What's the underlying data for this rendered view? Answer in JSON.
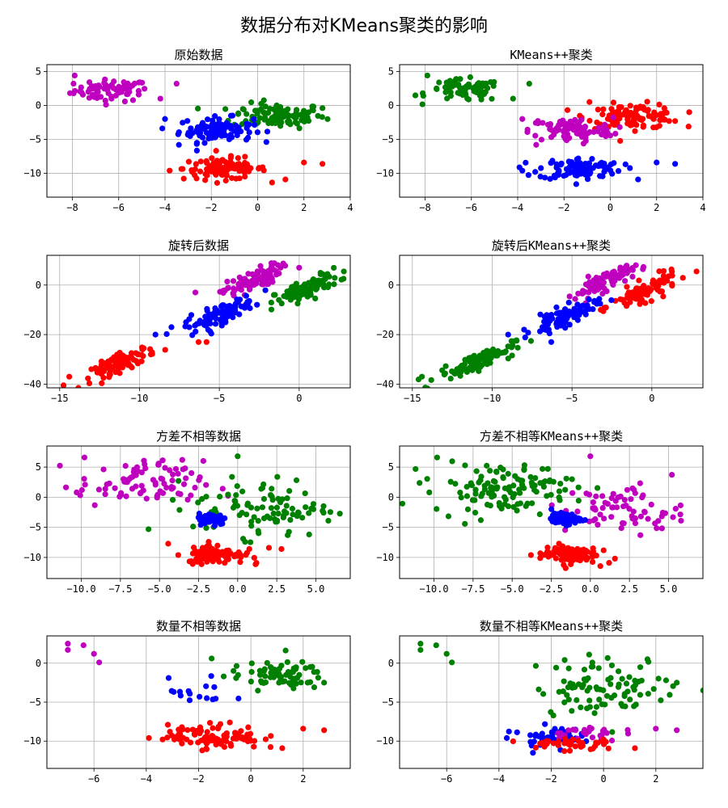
{
  "figure": {
    "suptitle": "数据分布对KMeans聚类的影响"
  },
  "colors": {
    "r": "#ff0000",
    "g": "#008000",
    "b": "#0000ff",
    "m": "#bf00bf",
    "axis": "#000000",
    "grid": "#b0b0b0"
  },
  "chart_data": [
    {
      "type": "scatter",
      "title": "原始数据",
      "grid": true,
      "xlim": [
        -9.1,
        4
      ],
      "ylim": [
        -13.5,
        6
      ],
      "xticks": [
        -8,
        -6,
        -4,
        -2,
        0,
        2,
        4
      ],
      "xtick_labels": [
        "−8",
        "−6",
        "−4",
        "−2",
        "0",
        "2",
        "4"
      ],
      "yticks": [
        5,
        0,
        -5,
        -10
      ],
      "ytick_labels": [
        "5",
        "0",
        "−5",
        "−10"
      ],
      "clusters": [
        {
          "color": "m",
          "cx": -6.3,
          "cy": 2.2,
          "sx": 0.8,
          "sy": 0.8,
          "n": 70,
          "extra": [
            [
              -8.1,
              1.8
            ],
            [
              -7.9,
              4.4
            ],
            [
              -3.5,
              3.2
            ],
            [
              -4.2,
              1.0
            ]
          ]
        },
        {
          "color": "g",
          "cx": 0.9,
          "cy": -1.5,
          "sx": 1.0,
          "sy": 0.9,
          "n": 110,
          "extra": [
            [
              2.8,
              -0.4
            ],
            [
              -0.6,
              -0.6
            ]
          ]
        },
        {
          "color": "b",
          "cx": -1.8,
          "cy": -3.6,
          "sx": 0.8,
          "sy": 0.9,
          "n": 95,
          "extra": [
            [
              -4.0,
              -2.0
            ],
            [
              -3.4,
              -5.8
            ]
          ]
        },
        {
          "color": "r",
          "cx": -1.4,
          "cy": -9.3,
          "sx": 0.9,
          "sy": 0.8,
          "n": 100,
          "extra": [
            [
              -3.8,
              -9.6
            ],
            [
              2.0,
              -8.4
            ],
            [
              2.8,
              -8.6
            ],
            [
              1.2,
              -10.9
            ]
          ]
        }
      ]
    },
    {
      "type": "scatter",
      "title": "KMeans++聚类",
      "grid": true,
      "xlim": [
        -9.1,
        4
      ],
      "ylim": [
        -13.5,
        6
      ],
      "xticks": [
        -8,
        -6,
        -4,
        -2,
        0,
        2,
        4
      ],
      "xtick_labels": [
        "−8",
        "−6",
        "−4",
        "−2",
        "0",
        "2",
        "4"
      ],
      "yticks": [
        5,
        0,
        -5,
        -10
      ],
      "ytick_labels": [
        "5",
        "0",
        "−5",
        "−10"
      ],
      "clusters": [
        {
          "color": "g",
          "cx": -6.3,
          "cy": 2.2,
          "sx": 0.8,
          "sy": 0.8,
          "n": 70,
          "extra": [
            [
              -8.1,
              1.8
            ],
            [
              -7.9,
              4.4
            ],
            [
              -3.5,
              3.2
            ],
            [
              -4.2,
              1.0
            ]
          ]
        },
        {
          "color": "r",
          "cx": 1.0,
          "cy": -1.6,
          "sx": 1.0,
          "sy": 0.9,
          "n": 110,
          "extra": [
            [
              2.8,
              -2.3
            ],
            [
              -0.9,
              0.5
            ]
          ]
        },
        {
          "color": "m",
          "cx": -1.7,
          "cy": -3.6,
          "sx": 0.9,
          "sy": 0.9,
          "n": 95,
          "extra": [
            [
              -3.8,
              -2.0
            ],
            [
              -3.2,
              -5.8
            ]
          ]
        },
        {
          "color": "b",
          "cx": -1.3,
          "cy": -9.3,
          "sx": 0.9,
          "sy": 0.8,
          "n": 100,
          "extra": [
            [
              -3.8,
              -9.6
            ],
            [
              2.0,
              -8.4
            ],
            [
              2.8,
              -8.6
            ],
            [
              1.2,
              -10.9
            ]
          ]
        }
      ]
    },
    {
      "type": "scatter",
      "title": "旋转后数据",
      "grid": true,
      "xlim": [
        -15.8,
        3.2
      ],
      "ylim": [
        -41.5,
        12
      ],
      "xticks": [
        -15,
        -10,
        -5,
        0
      ],
      "xtick_labels": [
        "−15",
        "−10",
        "−5",
        "0"
      ],
      "yticks": [
        0,
        -20,
        -40
      ],
      "ytick_labels": [
        "0",
        "−20",
        "−40"
      ],
      "clusters": [
        {
          "color": "m",
          "cx": -3.0,
          "cy": 1.5,
          "sx": 0.9,
          "sy": 2.0,
          "n": 90,
          "slope": 2.6,
          "extra": [
            [
              0.0,
              7.0
            ],
            [
              -6.5,
              -3.0
            ]
          ]
        },
        {
          "color": "g",
          "cx": 0.5,
          "cy": -1.5,
          "sx": 1.0,
          "sy": 2.0,
          "n": 100,
          "slope": 2.6,
          "extra": [
            [
              2.8,
              5.5
            ]
          ]
        },
        {
          "color": "b",
          "cx": -5.0,
          "cy": -12.0,
          "sx": 1.1,
          "sy": 2.0,
          "n": 95,
          "slope": 2.6,
          "extra": [
            [
              -8.0,
              -17.0
            ],
            [
              -9.0,
              -20.0
            ]
          ]
        },
        {
          "color": "r",
          "cx": -11.0,
          "cy": -31.0,
          "sx": 1.0,
          "sy": 1.8,
          "n": 95,
          "slope": 2.6,
          "extra": [
            [
              -14.4,
              -37.0
            ],
            [
              -6.3,
              -23.0
            ],
            [
              -5.8,
              -23.0
            ]
          ]
        }
      ]
    },
    {
      "type": "scatter",
      "title": "旋转后KMeans++聚类",
      "grid": true,
      "xlim": [
        -15.8,
        3.2
      ],
      "ylim": [
        -41.5,
        12
      ],
      "xticks": [
        -15,
        -10,
        -5,
        0
      ],
      "xtick_labels": [
        "−15",
        "−10",
        "−5",
        "0"
      ],
      "yticks": [
        0,
        -20,
        -40
      ],
      "ytick_labels": [
        "0",
        "−20",
        "−40"
      ],
      "clusters": [
        {
          "color": "m",
          "cx": -3.0,
          "cy": 1.5,
          "sx": 0.9,
          "sy": 2.0,
          "n": 90,
          "slope": 2.6,
          "extra": [
            [
              -1.0,
              8.0
            ]
          ]
        },
        {
          "color": "r",
          "cx": -0.4,
          "cy": -2.5,
          "sx": 1.0,
          "sy": 2.0,
          "n": 100,
          "slope": 2.6,
          "extra": [
            [
              2.8,
              5.5
            ],
            [
              -3.2,
              -10.0
            ]
          ]
        },
        {
          "color": "b",
          "cx": -5.5,
          "cy": -13.0,
          "sx": 1.0,
          "sy": 2.0,
          "n": 90,
          "slope": 2.6,
          "extra": [
            [
              -8.0,
              -18.0
            ],
            [
              -9.0,
              -20.0
            ],
            [
              -6.3,
              -23.0
            ]
          ]
        },
        {
          "color": "g",
          "cx": -11.0,
          "cy": -31.0,
          "sx": 1.2,
          "sy": 1.8,
          "n": 100,
          "slope": 2.6,
          "extra": [
            [
              -14.4,
              -37.0
            ]
          ]
        }
      ]
    },
    {
      "type": "scatter",
      "title": "方差不相等数据",
      "grid": true,
      "xlim": [
        -12.2,
        7.2
      ],
      "ylim": [
        -13.5,
        8.5
      ],
      "xticks": [
        -10,
        -7.5,
        -5,
        -2.5,
        0,
        2.5,
        5
      ],
      "xtick_labels": [
        "−10.0",
        "−7.5",
        "−5.0",
        "−2.5",
        "0.0",
        "2.5",
        "5.0"
      ],
      "yticks": [
        5,
        0,
        -5,
        -10
      ],
      "ytick_labels": [
        "5",
        "0",
        "−5",
        "−10"
      ],
      "clusters": [
        {
          "color": "m",
          "cx": -6.2,
          "cy": 2.2,
          "sx": 2.0,
          "sy": 1.9,
          "n": 85,
          "extra": [
            [
              -9.8,
              6.6
            ],
            [
              -10.3,
              0.8
            ],
            [
              -3.0,
              0.3
            ]
          ]
        },
        {
          "color": "g",
          "cx": 1.6,
          "cy": -1.7,
          "sx": 2.2,
          "sy": 2.4,
          "n": 95,
          "extra": [
            [
              0.0,
              6.8
            ],
            [
              5.8,
              -3.9
            ],
            [
              3.2,
              -6.3
            ]
          ]
        },
        {
          "color": "b",
          "cx": -1.6,
          "cy": -3.6,
          "sx": 0.45,
          "sy": 0.45,
          "n": 85,
          "extra": []
        },
        {
          "color": "r",
          "cx": -1.4,
          "cy": -9.4,
          "sx": 0.9,
          "sy": 0.8,
          "n": 100,
          "extra": [
            [
              -3.8,
              -9.6
            ],
            [
              2.0,
              -8.4
            ],
            [
              2.8,
              -8.6
            ],
            [
              1.2,
              -10.9
            ]
          ]
        }
      ]
    },
    {
      "type": "scatter",
      "title": "方差不相等KMeans++聚类",
      "grid": true,
      "xlim": [
        -12.2,
        7.2
      ],
      "ylim": [
        -13.5,
        8.5
      ],
      "xticks": [
        -10,
        -7.5,
        -5,
        -2.5,
        0,
        2.5,
        5
      ],
      "xtick_labels": [
        "−10.0",
        "−7.5",
        "−5.0",
        "−2.5",
        "0.0",
        "2.5",
        "5.0"
      ],
      "yticks": [
        5,
        0,
        -5,
        -10
      ],
      "ytick_labels": [
        "5",
        "0",
        "−5",
        "−10"
      ],
      "clusters": [
        {
          "color": "g",
          "cx": -5.6,
          "cy": 1.6,
          "sx": 2.3,
          "sy": 2.0,
          "n": 120,
          "extra": [
            [
              -9.8,
              6.6
            ],
            [
              -10.3,
              0.8
            ]
          ]
        },
        {
          "color": "m",
          "cx": 2.2,
          "cy": -2.0,
          "sx": 1.9,
          "sy": 2.1,
          "n": 70,
          "extra": [
            [
              5.8,
              -3.9
            ],
            [
              3.2,
              -6.3
            ],
            [
              0.0,
              6.8
            ]
          ]
        },
        {
          "color": "b",
          "cx": -1.6,
          "cy": -3.6,
          "sx": 0.45,
          "sy": 0.45,
          "n": 85,
          "extra": []
        },
        {
          "color": "r",
          "cx": -1.4,
          "cy": -9.4,
          "sx": 0.9,
          "sy": 0.8,
          "n": 100,
          "extra": [
            [
              -3.8,
              -9.6
            ],
            [
              1.2,
              -10.9
            ]
          ]
        }
      ]
    },
    {
      "type": "scatter",
      "title": "数量不相等数据",
      "grid": true,
      "xlim": [
        -7.8,
        3.8
      ],
      "ylim": [
        -13.5,
        3.5
      ],
      "xticks": [
        -6,
        -4,
        -2,
        0,
        2
      ],
      "xtick_labels": [
        "−6",
        "−4",
        "−2",
        "0",
        "2"
      ],
      "yticks": [
        0,
        -5,
        -10
      ],
      "ytick_labels": [
        "0",
        "−5",
        "−10"
      ],
      "clusters": [
        {
          "color": "m",
          "cx": -6.5,
          "cy": 1.5,
          "sx": 0.0,
          "sy": 0.0,
          "n": 0,
          "extra": [
            [
              -7.0,
              2.5
            ],
            [
              -7.0,
              1.7
            ],
            [
              -6.4,
              2.3
            ],
            [
              -6.0,
              1.2
            ],
            [
              -5.8,
              0.1
            ]
          ]
        },
        {
          "color": "g",
          "cx": 1.0,
          "cy": -1.6,
          "sx": 0.9,
          "sy": 0.9,
          "n": 70,
          "extra": [
            [
              -1.5,
              0.6
            ],
            [
              2.8,
              -2.5
            ]
          ]
        },
        {
          "color": "b",
          "cx": -1.9,
          "cy": -3.8,
          "sx": 0.6,
          "sy": 0.9,
          "n": 16,
          "extra": []
        },
        {
          "color": "r",
          "cx": -1.4,
          "cy": -9.4,
          "sx": 0.9,
          "sy": 0.8,
          "n": 100,
          "extra": [
            [
              -3.9,
              -9.6
            ],
            [
              2.0,
              -8.4
            ],
            [
              2.8,
              -8.6
            ],
            [
              1.2,
              -10.9
            ]
          ]
        }
      ]
    },
    {
      "type": "scatter",
      "title": "数量不相等KMeans++聚类",
      "grid": true,
      "xlim": [
        -7.8,
        3.8
      ],
      "ylim": [
        -13.5,
        3.5
      ],
      "xticks": [
        -6,
        -4,
        -2,
        0,
        2
      ],
      "xtick_labels": [
        "−6",
        "−4",
        "−2",
        "0",
        "2"
      ],
      "yticks": [
        0,
        -5,
        -10
      ],
      "ytick_labels": [
        "0",
        "−5",
        "−10"
      ],
      "clusters": [
        {
          "color": "g",
          "cx": 0.2,
          "cy": -3.0,
          "sx": 1.4,
          "sy": 1.9,
          "n": 90,
          "extra": [
            [
              -7.0,
              2.5
            ],
            [
              -7.0,
              1.7
            ],
            [
              -6.4,
              2.3
            ],
            [
              -6.0,
              1.2
            ],
            [
              -5.8,
              0.1
            ],
            [
              2.8,
              -2.5
            ]
          ]
        },
        {
          "color": "b",
          "cx": -2.0,
          "cy": -9.3,
          "sx": 0.55,
          "sy": 0.6,
          "n": 45,
          "extra": [
            [
              -3.7,
              -9.6
            ],
            [
              -2.7,
              -11.5
            ]
          ]
        },
        {
          "color": "m",
          "cx": -0.8,
          "cy": -9.0,
          "sx": 0.7,
          "sy": 0.5,
          "n": 25,
          "extra": [
            [
              2.0,
              -8.4
            ],
            [
              2.8,
              -8.6
            ]
          ]
        },
        {
          "color": "r",
          "cx": -1.3,
          "cy": -10.3,
          "sx": 0.9,
          "sy": 0.5,
          "n": 40,
          "extra": [
            [
              1.2,
              -10.9
            ]
          ]
        }
      ]
    }
  ]
}
